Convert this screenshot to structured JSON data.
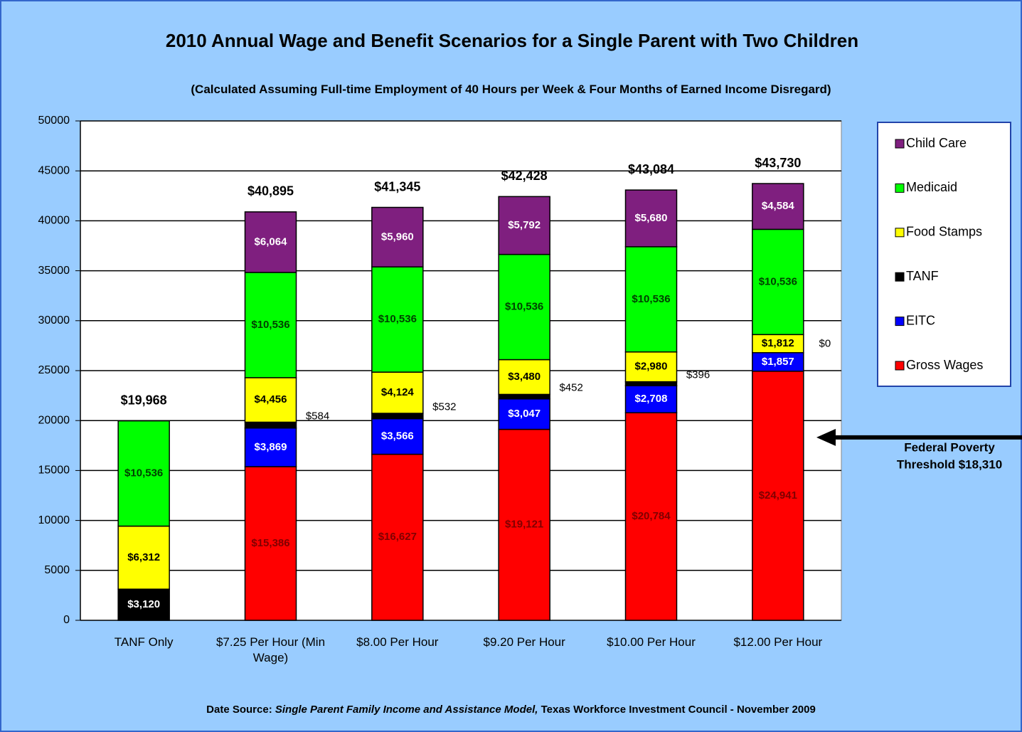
{
  "chart_data": {
    "type": "stacked_bar",
    "title": "2010 Annual Wage and Benefit Scenarios for a Single Parent with Two Children",
    "subtitle": "(Calculated Assuming Full-time Employment of 40 Hours per Week & Four Months of Earned Income Disregard)",
    "categories": [
      "TANF Only",
      "$7.25 Per Hour (Min Wage)",
      "$8.00 Per Hour",
      "$9.20 Per Hour",
      "$10.00 Per Hour",
      "$12.00 Per Hour"
    ],
    "series": [
      {
        "name": "Gross Wages",
        "color": "#ff0000",
        "label_color": "#800000",
        "values": [
          0,
          15386,
          16627,
          19121,
          20784,
          24941
        ],
        "value_labels": [
          null,
          "$15,386",
          "$16,627",
          "$19,121",
          "$20,784",
          "$24,941"
        ]
      },
      {
        "name": "EITC",
        "color": "#0000ff",
        "label_color": "#ffffff",
        "values": [
          0,
          3869,
          3566,
          3047,
          2708,
          1857
        ],
        "value_labels": [
          null,
          "$3,869",
          "$3,566",
          "$3,047",
          "$2,708",
          "$1,857"
        ]
      },
      {
        "name": "TANF",
        "color": "#000000",
        "label_color": "#ffffff",
        "values": [
          3120,
          584,
          532,
          452,
          396,
          0
        ],
        "value_labels": [
          "$3,120",
          "$584",
          "$532",
          "$452",
          "$396",
          "$0"
        ]
      },
      {
        "name": "Food Stamps",
        "color": "#ffff00",
        "label_color": "#000000",
        "values": [
          6312,
          4456,
          4124,
          3480,
          2980,
          1812
        ],
        "value_labels": [
          "$6,312",
          "$4,456",
          "$4,124",
          "$3,480",
          "$2,980",
          "$1,812"
        ]
      },
      {
        "name": "Medicaid",
        "color": "#00ff00",
        "label_color": "#004000",
        "values": [
          10536,
          10536,
          10536,
          10536,
          10536,
          10536
        ],
        "value_labels": [
          "$10,536",
          "$10,536",
          "$10,536",
          "$10,536",
          "$10,536",
          "$10,536"
        ]
      },
      {
        "name": "Child Care",
        "color": "#7f1f7f",
        "label_color": "#ffffff",
        "values": [
          0,
          6064,
          5960,
          5792,
          5680,
          4584
        ],
        "value_labels": [
          null,
          "$6,064",
          "$5,960",
          "$5,792",
          "$5,680",
          "$4,584"
        ]
      }
    ],
    "totals": [
      19968,
      40895,
      41345,
      42428,
      43084,
      43730
    ],
    "total_labels": [
      "$19,968",
      "$40,895",
      "$41,345",
      "$42,428",
      "$43,084",
      "$43,730"
    ],
    "ylim": [
      0,
      50000
    ],
    "yticks": [
      0,
      5000,
      10000,
      15000,
      20000,
      25000,
      30000,
      35000,
      40000,
      45000,
      50000
    ],
    "grid": true,
    "legend": "right",
    "annotation": {
      "lines": [
        "Federal Poverty",
        "Threshold $18,310"
      ],
      "value": 18310
    },
    "source": {
      "lead": "Date Source:",
      "italic": "Single Parent Family Income and Assistance Model,",
      "rest": "Texas Workforce Investment Council - November 2009"
    }
  }
}
